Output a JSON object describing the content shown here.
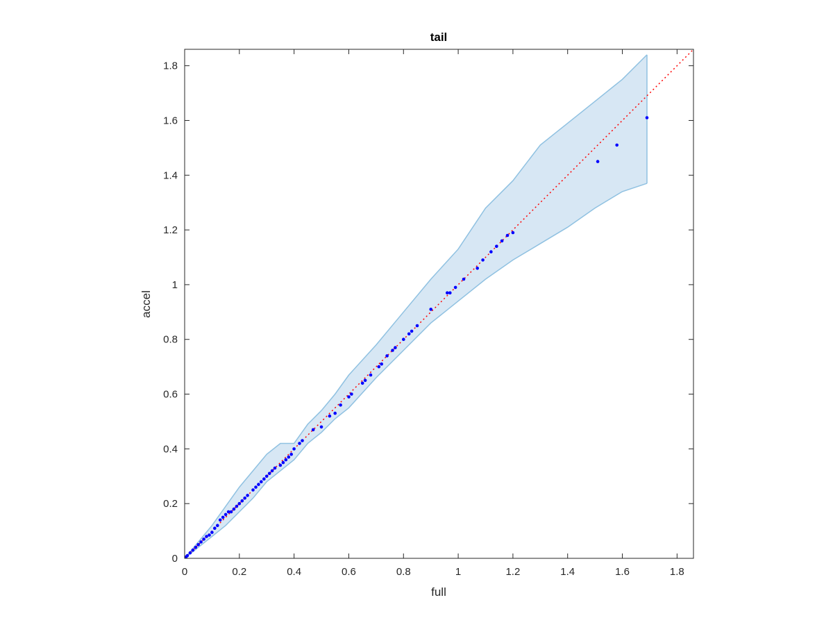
{
  "chart_data": {
    "type": "scatter",
    "title": "tail",
    "xlabel": "full",
    "ylabel": "accel",
    "xlim": [
      0,
      1.86
    ],
    "ylim": [
      0,
      1.86
    ],
    "xticks": [
      0,
      0.2,
      0.4,
      0.6,
      0.8,
      1,
      1.2,
      1.4,
      1.6,
      1.8
    ],
    "yticks": [
      0,
      0.2,
      0.4,
      0.6,
      0.8,
      1,
      1.2,
      1.4,
      1.6,
      1.8
    ],
    "xtick_labels": [
      "0",
      "0.2",
      "0.4",
      "0.6",
      "0.8",
      "1",
      "1.2",
      "1.4",
      "1.6",
      "1.8"
    ],
    "ytick_labels": [
      "0",
      "0.2",
      "0.4",
      "0.6",
      "0.8",
      "1",
      "1.2",
      "1.4",
      "1.6",
      "1.8"
    ],
    "grid": false,
    "colors": {
      "points": "#0000ff",
      "reference_line": "#ff0000",
      "band_fill": "#d7e7f4",
      "band_edge": "#8fc1e1",
      "axes": "#262626"
    },
    "reference_line": {
      "x": [
        0,
        1.86
      ],
      "y": [
        0,
        1.86
      ],
      "style": "dotted"
    },
    "band": {
      "x": [
        0,
        0.05,
        0.1,
        0.15,
        0.2,
        0.25,
        0.3,
        0.35,
        0.4,
        0.45,
        0.5,
        0.55,
        0.6,
        0.7,
        0.8,
        0.9,
        1.0,
        1.1,
        1.2,
        1.3,
        1.4,
        1.5,
        1.6,
        1.69
      ],
      "upper": [
        0,
        0.06,
        0.12,
        0.19,
        0.26,
        0.32,
        0.38,
        0.42,
        0.42,
        0.49,
        0.54,
        0.6,
        0.67,
        0.78,
        0.9,
        1.02,
        1.13,
        1.28,
        1.38,
        1.51,
        1.59,
        1.67,
        1.75,
        1.84
      ],
      "lower": [
        0,
        0.04,
        0.08,
        0.12,
        0.17,
        0.22,
        0.28,
        0.32,
        0.36,
        0.42,
        0.46,
        0.51,
        0.55,
        0.66,
        0.76,
        0.86,
        0.94,
        1.02,
        1.09,
        1.15,
        1.21,
        1.28,
        1.34,
        1.37
      ]
    },
    "points": {
      "x": [
        0.005,
        0.01,
        0.02,
        0.03,
        0.04,
        0.05,
        0.06,
        0.07,
        0.08,
        0.09,
        0.1,
        0.11,
        0.12,
        0.13,
        0.14,
        0.15,
        0.16,
        0.17,
        0.18,
        0.19,
        0.2,
        0.21,
        0.22,
        0.23,
        0.25,
        0.26,
        0.27,
        0.28,
        0.29,
        0.3,
        0.31,
        0.32,
        0.33,
        0.35,
        0.36,
        0.37,
        0.38,
        0.39,
        0.4,
        0.42,
        0.43,
        0.47,
        0.5,
        0.53,
        0.55,
        0.57,
        0.6,
        0.61,
        0.65,
        0.66,
        0.68,
        0.71,
        0.72,
        0.74,
        0.76,
        0.77,
        0.8,
        0.82,
        0.83,
        0.85,
        0.9,
        0.96,
        0.97,
        0.99,
        1.02,
        1.07,
        1.09,
        1.12,
        1.14,
        1.16,
        1.18,
        1.2,
        1.51,
        1.58,
        1.69
      ],
      "y": [
        0.005,
        0.01,
        0.02,
        0.03,
        0.04,
        0.05,
        0.06,
        0.07,
        0.08,
        0.085,
        0.095,
        0.11,
        0.12,
        0.14,
        0.15,
        0.16,
        0.17,
        0.17,
        0.18,
        0.19,
        0.2,
        0.21,
        0.22,
        0.23,
        0.25,
        0.26,
        0.27,
        0.28,
        0.29,
        0.3,
        0.31,
        0.32,
        0.33,
        0.34,
        0.35,
        0.36,
        0.37,
        0.38,
        0.4,
        0.42,
        0.43,
        0.47,
        0.48,
        0.52,
        0.53,
        0.56,
        0.59,
        0.6,
        0.64,
        0.65,
        0.67,
        0.7,
        0.71,
        0.74,
        0.76,
        0.77,
        0.8,
        0.82,
        0.83,
        0.85,
        0.91,
        0.97,
        0.97,
        0.99,
        1.02,
        1.06,
        1.09,
        1.12,
        1.14,
        1.16,
        1.18,
        1.19,
        1.45,
        1.51,
        1.61
      ]
    }
  }
}
